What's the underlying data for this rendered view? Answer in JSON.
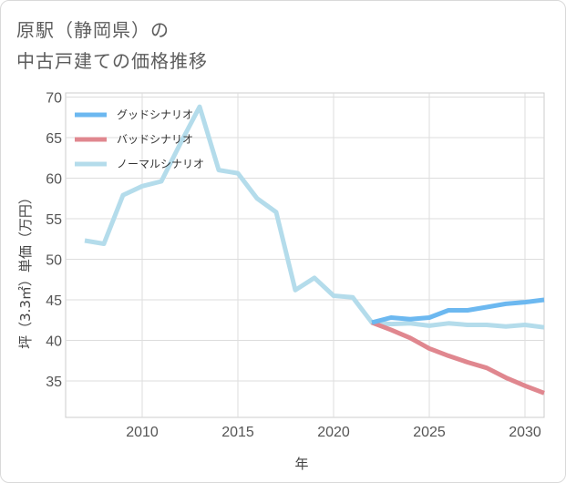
{
  "title": {
    "line1": "原駅（静岡県）の",
    "line2": "中古戸建ての価格推移"
  },
  "chart_data": {
    "type": "line",
    "xlabel": "年",
    "ylabel": "坪（3.3㎡）単価（万円）",
    "xlim": [
      2006,
      2031
    ],
    "ylim": [
      30.5,
      70.5
    ],
    "xticks": [
      2010,
      2015,
      2020,
      2025,
      2030
    ],
    "yticks": [
      35,
      40,
      45,
      50,
      55,
      60,
      65,
      70
    ],
    "grid": true,
    "legend_position": "top-left",
    "series": [
      {
        "name": "グッドシナリオ",
        "color": "#6cb8f0",
        "x": [
          2022,
          2023,
          2024,
          2025,
          2026,
          2027,
          2028,
          2029,
          2030,
          2031
        ],
        "y": [
          42.2,
          42.8,
          42.6,
          42.8,
          43.7,
          43.7,
          44.1,
          44.5,
          44.7,
          45.0
        ]
      },
      {
        "name": "バッドシナリオ",
        "color": "#e0878f",
        "x": [
          2022,
          2023,
          2024,
          2025,
          2026,
          2027,
          2028,
          2029,
          2030,
          2031
        ],
        "y": [
          42.2,
          41.3,
          40.3,
          39.0,
          38.1,
          37.3,
          36.6,
          35.4,
          34.4,
          33.5
        ]
      },
      {
        "name": "ノーマルシナリオ",
        "color": "#b4dceb",
        "x": [
          2007,
          2008,
          2009,
          2010,
          2011,
          2012,
          2013,
          2014,
          2015,
          2016,
          2017,
          2018,
          2019,
          2020,
          2021,
          2022,
          2023,
          2024,
          2025,
          2026,
          2027,
          2028,
          2029,
          2030,
          2031
        ],
        "y": [
          52.3,
          51.9,
          57.9,
          59.0,
          59.6,
          64.3,
          68.8,
          61.0,
          60.6,
          57.5,
          55.8,
          46.2,
          47.7,
          45.5,
          45.3,
          42.2,
          42.0,
          42.1,
          41.8,
          42.1,
          41.9,
          41.9,
          41.7,
          41.9,
          41.6
        ]
      }
    ]
  }
}
